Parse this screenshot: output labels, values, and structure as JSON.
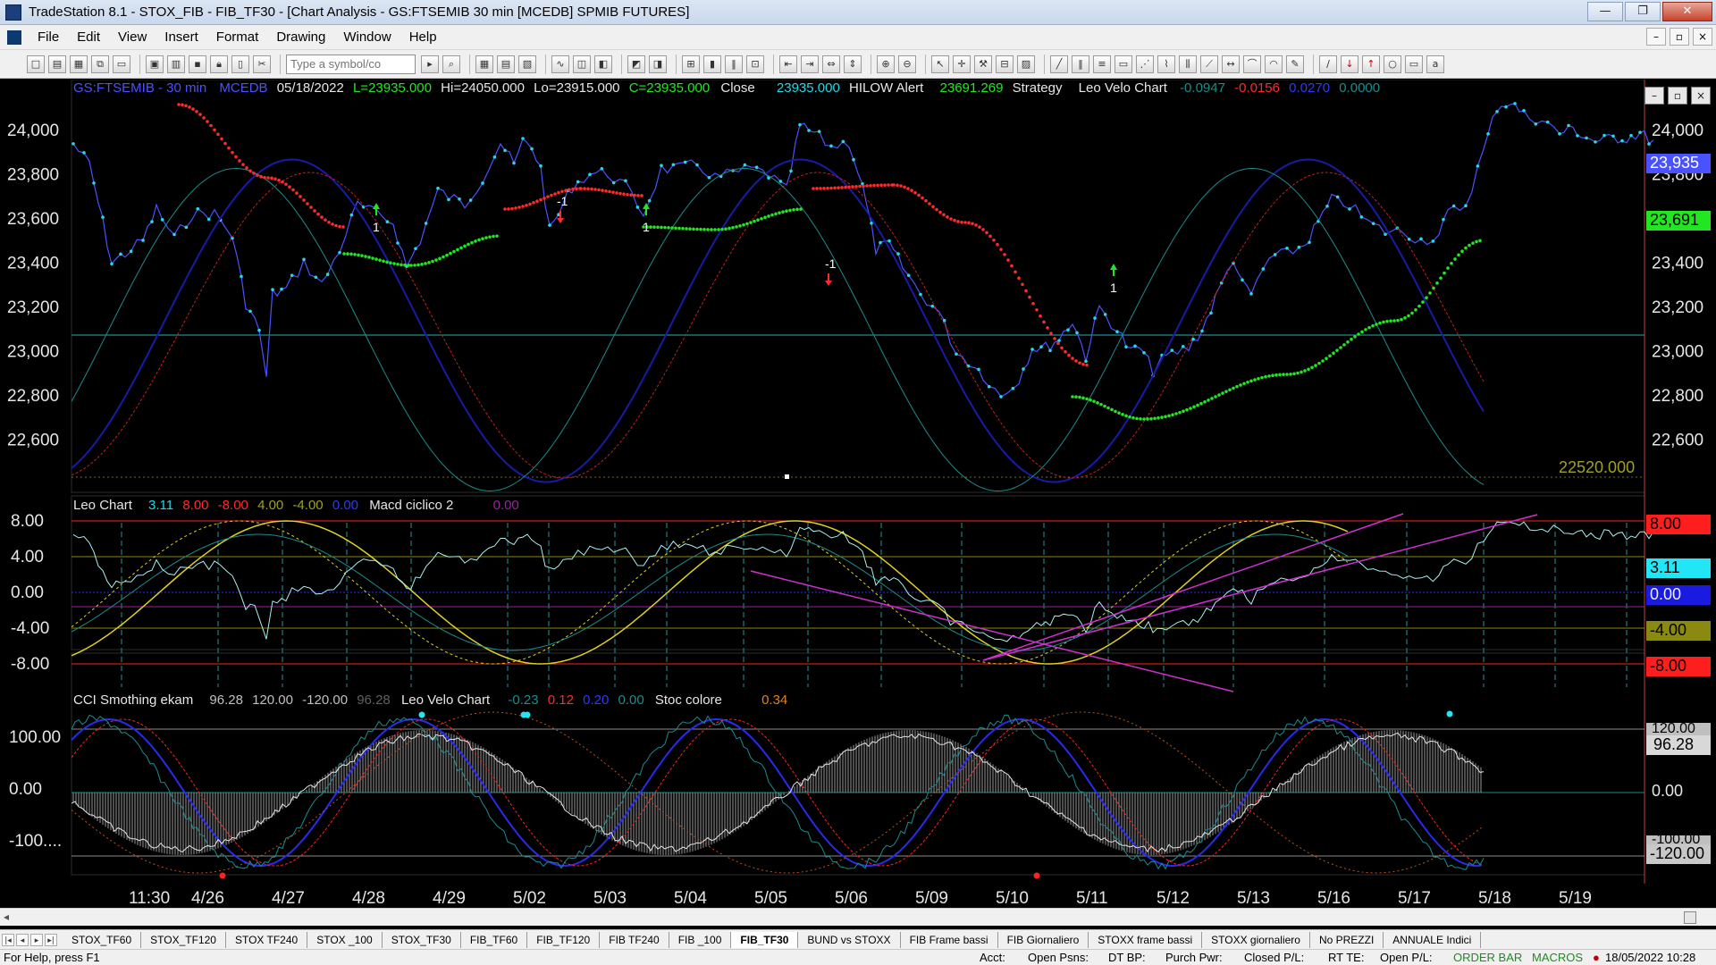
{
  "window": {
    "title": "TradeStation 8.1 - STOX_FIB - FIB_TF30 - [Chart Analysis - GS:FTSEMIB  30 min  [MCEDB] SPMIB FUTURES]",
    "controls": [
      "—",
      "❐",
      "✕"
    ]
  },
  "menu": [
    "File",
    "Edit",
    "View",
    "Insert",
    "Format",
    "Drawing",
    "Window",
    "Help"
  ],
  "toolbar": {
    "symbol_placeholder": "Type a symbol/co"
  },
  "chart": {
    "header": {
      "symbol": "GS:FTSEMIB - 30 min",
      "feed": "MCEDB",
      "date": "05/18/2022",
      "last": "L=23935.000",
      "high": "Hi=24050.000",
      "low": "Lo=23915.000",
      "close_c": "C=23935.000",
      "close_word": "Close",
      "close_val": "23935.000",
      "hilow": "HILOW Alert",
      "hilow_val": "23691.269",
      "strategy": "Strategy",
      "velo": "Leo Velo Chart",
      "velo_v1": "-0.0947",
      "velo_v2": "-0.0156",
      "velo_v3": "0.0270",
      "velo_v4": "0.0000"
    },
    "price_axis": [
      "24,000",
      "23,800",
      "23,600",
      "23,400",
      "23,200",
      "23,000",
      "22,800",
      "22,600"
    ],
    "price_badges": {
      "last": "23,935",
      "hilow": "23,691"
    },
    "support_label": "22520.000",
    "panel2": {
      "name": "Leo Chart",
      "v1": "3.11",
      "v2": "8.00",
      "v3": "-8.00",
      "v4": "4.00",
      "v5": "-4.00",
      "v6": "0.00",
      "macd": "Macd ciclico 2",
      "macd_v": "0.00",
      "axis": [
        "8.00",
        "4.00",
        "0.00",
        "-4.00",
        "-8.00"
      ],
      "badges": {
        "top": "8.00",
        "val": "3.11",
        "zero": "0.00",
        "neg4": "-4.00",
        "neg8": "-8.00"
      }
    },
    "panel3": {
      "name": "CCI Smothing ekam",
      "v1": "96.28",
      "v2": "120.00",
      "v3": "-120.00",
      "v4": "96.28",
      "velo": "Leo Velo Chart",
      "velo_v1": "-0.23",
      "velo_v2": "0.12",
      "velo_v3": "0.20",
      "velo_v4": "0.00",
      "stoc": "Stoc colore",
      "stoc_v": "0.34",
      "axis": [
        "100.00",
        "0.00",
        "-100...."
      ],
      "badges": {
        "top": "120.00",
        "val": "96.28",
        "bottom": "-120.00",
        "zero": "0.00",
        "m100": "-100.00"
      }
    },
    "time_axis": [
      "11:30",
      "4/26",
      "4/27",
      "4/28",
      "4/29",
      "5/02",
      "5/03",
      "5/04",
      "5/05",
      "5/06",
      "5/09",
      "5/10",
      "5/11",
      "5/12",
      "5/13",
      "5/16",
      "5/17",
      "5/18",
      "5/19"
    ],
    "arrows": [
      {
        "dir": "up",
        "label": "1"
      },
      {
        "dir": "down",
        "label": "-1"
      },
      {
        "dir": "up",
        "label": "1"
      },
      {
        "dir": "down",
        "label": "-1"
      },
      {
        "dir": "up",
        "label": "1"
      }
    ],
    "colors": {
      "price": "#4a52ff",
      "dots": "#27d8e6",
      "ma_blue": "#1a1aa8",
      "ma_red": "#c02020",
      "teal": "#1c8c8c",
      "hilow_red": "#ff2a2a",
      "hilow_green": "#22e622",
      "macd_yellow": "#e0d020",
      "magenta": "#d030d0"
    }
  },
  "tabs": [
    "STOX_TF60",
    "STOX_TF120",
    "STOX TF240",
    "STOX _100",
    "STOX_TF30",
    "FIB_TF60",
    "FIB_TF120",
    "FIB TF240",
    "FIB _100",
    "FIB_TF30",
    "BUND vs STOXX",
    "FIB Frame bassi",
    "FIB Giornaliero",
    "STOXX frame bassi",
    "STOXX giornaliero",
    "No PREZZI",
    "ANNUALE Indici"
  ],
  "active_tab": "FIB_TF30",
  "status": {
    "help": "For Help, press F1",
    "acct": "Acct:",
    "open_psns": "Open Psns:",
    "dt_bp": "DT BP:",
    "purch": "Purch Pwr:",
    "closed_pl": "Closed P/L:",
    "rt_te": "RT TE:",
    "open_pl": "Open P/L:",
    "order_bar": "ORDER BAR",
    "macros": "MACROS",
    "datetime": "18/05/2022 10:28"
  }
}
